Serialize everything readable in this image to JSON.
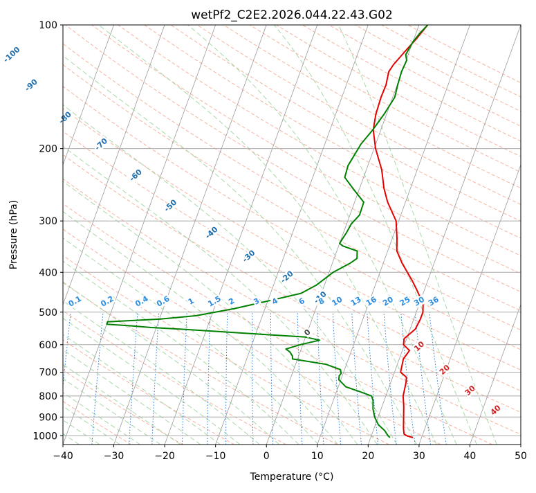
{
  "chart_data": {
    "type": "skew-t",
    "title": "wetPf2_C2E2.2026.044.22.43.G02",
    "xlabel": "Temperature (°C)",
    "ylabel": "Pressure (hPa)",
    "xlim": [
      -40,
      50
    ],
    "ylim": [
      1050,
      100
    ],
    "y_scale": "log",
    "grid": true,
    "x_ticks": [
      -40,
      -30,
      -20,
      -10,
      0,
      10,
      20,
      30,
      40,
      50
    ],
    "y_ticks": [
      100,
      200,
      300,
      400,
      500,
      600,
      700,
      800,
      900,
      1000
    ],
    "colors": {
      "temperature": "#e60000",
      "dewpoint": "#008000",
      "isotherm": "#9a9a9a",
      "dry_adiabat": "#f6b39f",
      "moist_adiabat": "#a8d8a8",
      "mixing_ratio": "#1f78d8",
      "isotherm_label": "#444444",
      "dry_adiabat_label": "#cc2222",
      "moist_adiabat_label": "#1f6fae",
      "mixing_ratio_label": "#2b8de0"
    },
    "series": [
      {
        "key": "temperature",
        "points": [
          [
            1010,
            28.3
          ],
          [
            1000,
            27.0
          ],
          [
            990,
            26.3
          ],
          [
            960,
            25.8
          ],
          [
            900,
            25.0
          ],
          [
            850,
            24.3
          ],
          [
            800,
            23.4
          ],
          [
            740,
            23.0
          ],
          [
            720,
            22.7
          ],
          [
            700,
            21.2
          ],
          [
            650,
            20.8
          ],
          [
            620,
            21.4
          ],
          [
            600,
            19.8
          ],
          [
            580,
            19.5
          ],
          [
            550,
            21.0
          ],
          [
            520,
            21.3
          ],
          [
            500,
            21.3
          ],
          [
            480,
            20.8
          ],
          [
            460,
            19.7
          ],
          [
            440,
            18.4
          ],
          [
            420,
            17.0
          ],
          [
            380,
            13.7
          ],
          [
            355,
            11.8
          ],
          [
            330,
            10.9
          ],
          [
            300,
            9.5
          ],
          [
            270,
            6.5
          ],
          [
            250,
            4.8
          ],
          [
            225,
            3.0
          ],
          [
            200,
            0.3
          ],
          [
            180,
            -1.5
          ],
          [
            165,
            -2.1
          ],
          [
            150,
            -2.3
          ],
          [
            140,
            -2.2
          ],
          [
            130,
            -2.6
          ],
          [
            125,
            -2.2
          ],
          [
            115,
            -0.7
          ],
          [
            108,
            0.5
          ],
          [
            100,
            1.7
          ]
        ]
      },
      {
        "key": "dewpoint",
        "points": [
          [
            1010,
            23.8
          ],
          [
            1000,
            23.3
          ],
          [
            970,
            22.2
          ],
          [
            940,
            20.6
          ],
          [
            900,
            19.3
          ],
          [
            860,
            18.4
          ],
          [
            820,
            17.8
          ],
          [
            800,
            17.2
          ],
          [
            780,
            14.5
          ],
          [
            760,
            11.5
          ],
          [
            730,
            9.6
          ],
          [
            715,
            9.4
          ],
          [
            705,
            9.6
          ],
          [
            690,
            9.2
          ],
          [
            670,
            6.0
          ],
          [
            650,
            -1.0
          ],
          [
            640,
            -1.2
          ],
          [
            625,
            -2.0
          ],
          [
            615,
            -3.0
          ],
          [
            600,
            -0.5
          ],
          [
            585,
            3.0
          ],
          [
            575,
            0.0
          ],
          [
            565,
            -10.0
          ],
          [
            550,
            -25.0
          ],
          [
            545,
            -31.0
          ],
          [
            540,
            -35.0
          ],
          [
            535,
            -40.0
          ],
          [
            528,
            -40.0
          ],
          [
            520,
            -30.0
          ],
          [
            510,
            -23.0
          ],
          [
            490,
            -16.0
          ],
          [
            470,
            -10.0
          ],
          [
            450,
            -4.0
          ],
          [
            430,
            -1.6
          ],
          [
            400,
            0.8
          ],
          [
            380,
            3.5
          ],
          [
            370,
            4.5
          ],
          [
            355,
            4.0
          ],
          [
            345,
            0.8
          ],
          [
            340,
            0.0
          ],
          [
            320,
            0.6
          ],
          [
            305,
            0.9
          ],
          [
            290,
            1.9
          ],
          [
            270,
            1.8
          ],
          [
            250,
            -1.3
          ],
          [
            235,
            -3.7
          ],
          [
            220,
            -3.9
          ],
          [
            205,
            -3.3
          ],
          [
            195,
            -2.9
          ],
          [
            180,
            -1.6
          ],
          [
            165,
            -0.5
          ],
          [
            150,
            0.4
          ],
          [
            140,
            0.1
          ],
          [
            130,
            -0.1
          ],
          [
            122,
            0.1
          ],
          [
            118,
            -0.5
          ],
          [
            110,
            0.0
          ],
          [
            105,
            0.7
          ],
          [
            100,
            1.7
          ]
        ]
      }
    ],
    "isotherm_labels": [
      "0"
    ],
    "dry_adiabat_labels": [
      "10",
      "20",
      "30",
      "40"
    ],
    "moist_adiabat_labels": [
      "-100",
      "-90",
      "-80",
      "-70",
      "-60",
      "-50",
      "-40",
      "-30",
      "-20",
      "-10"
    ],
    "mixing_ratio_labels": [
      "0.1",
      "0.2",
      "0.4",
      "0.6",
      "1",
      "1.5",
      "2",
      "3",
      "4",
      "6",
      "8",
      "10",
      "13",
      "16",
      "20",
      "25",
      "30",
      "36"
    ]
  }
}
